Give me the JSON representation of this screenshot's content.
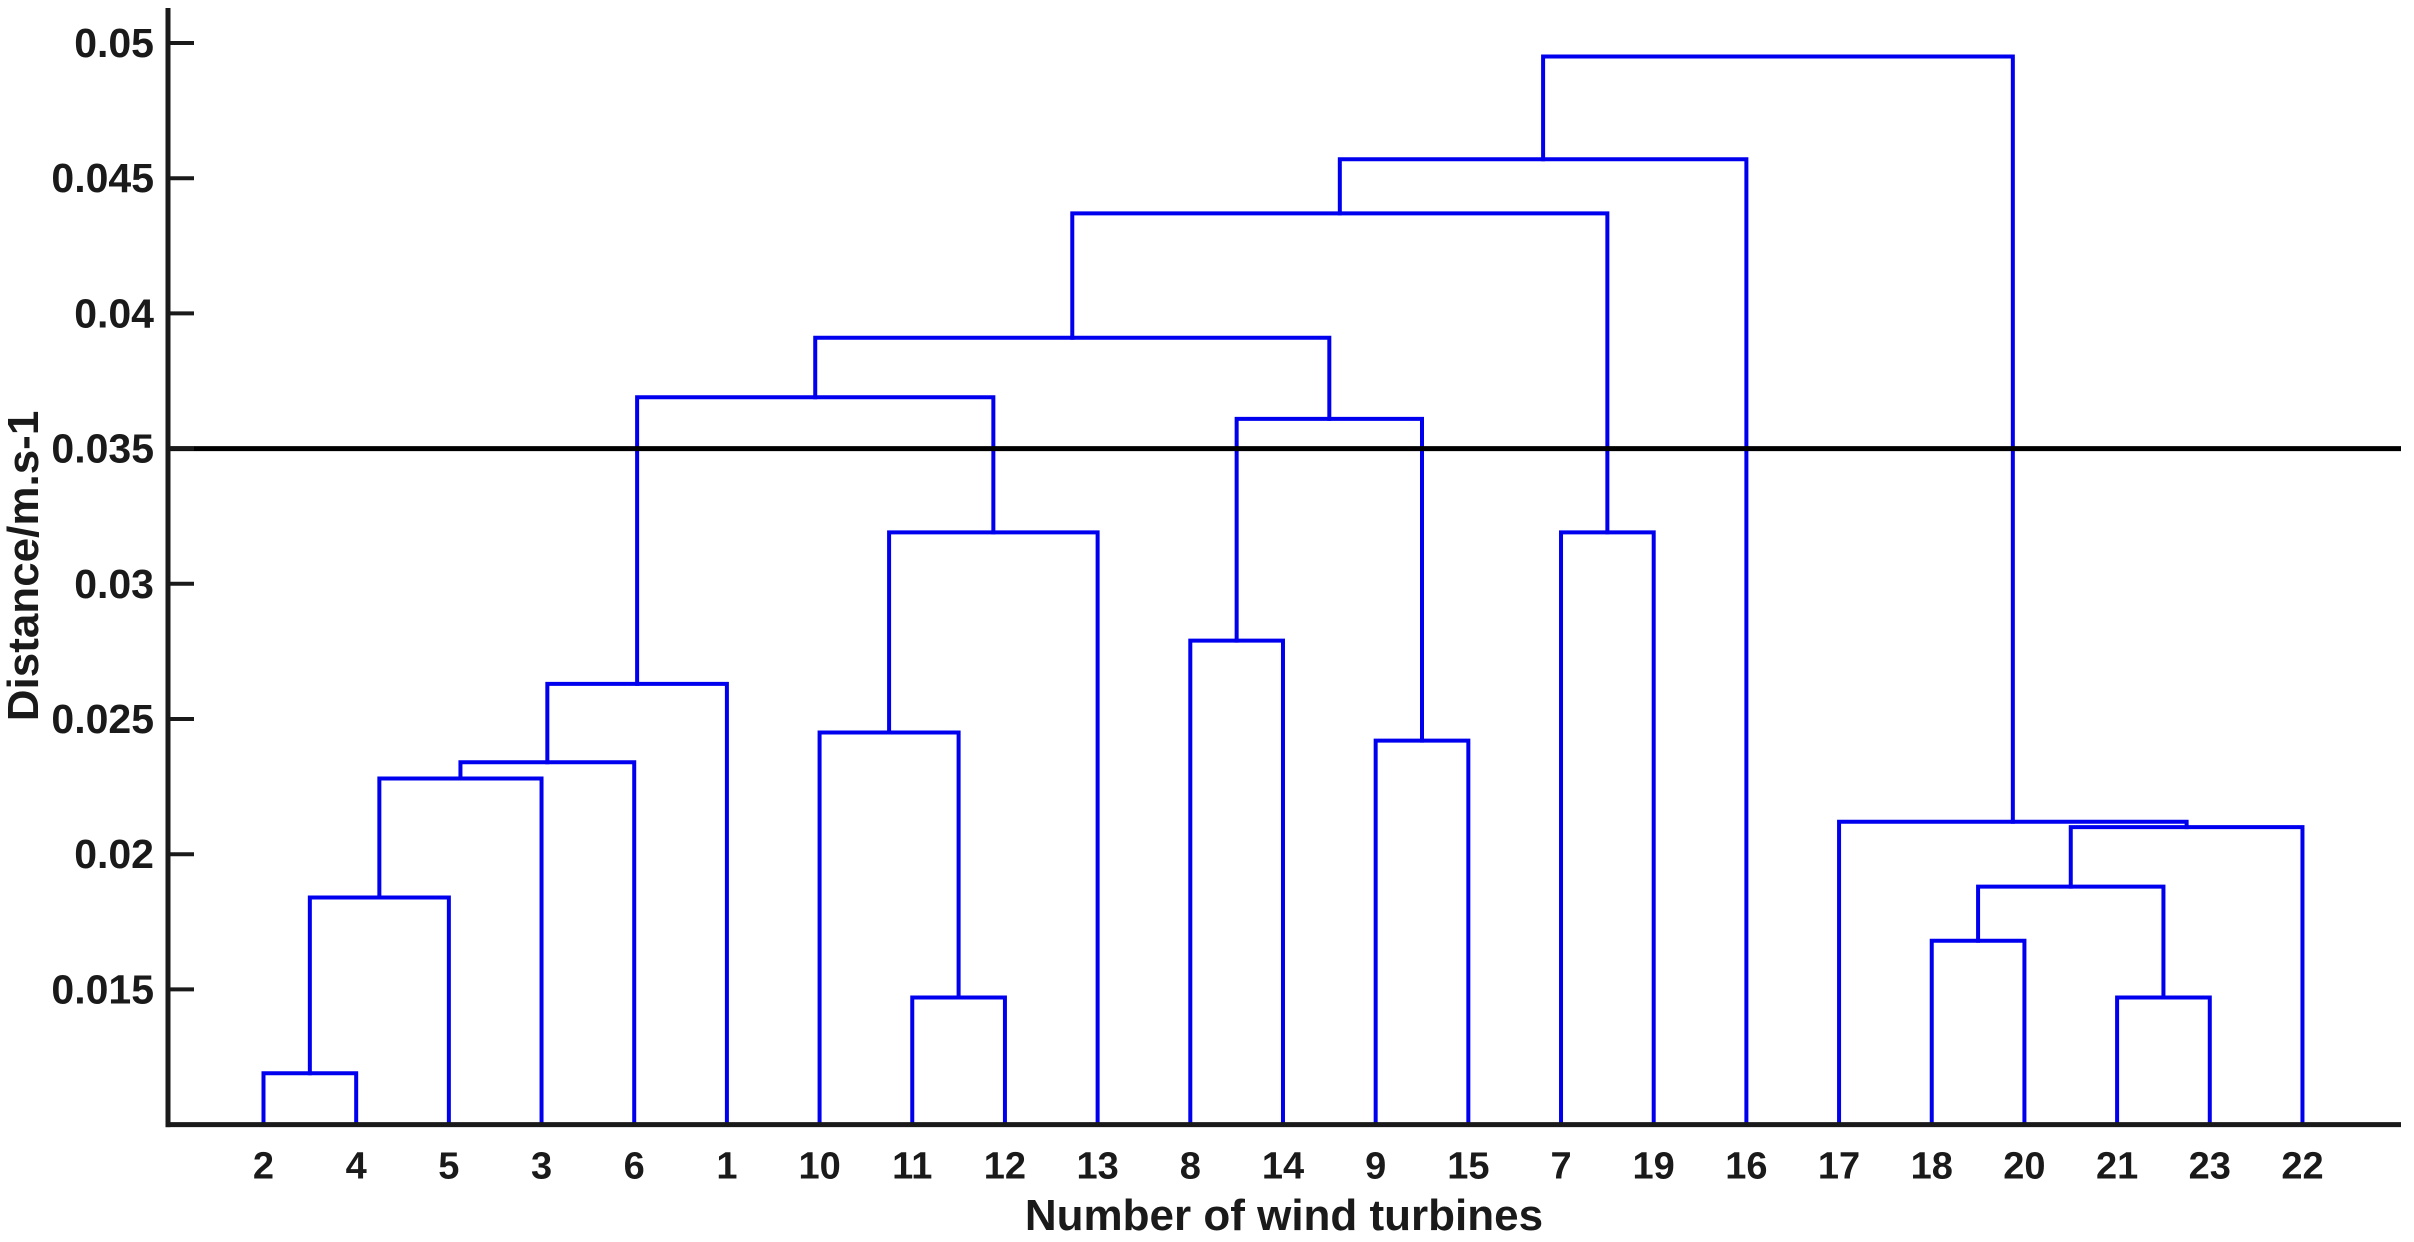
{
  "figure": {
    "xlabel": "Number of wind turbines",
    "ylabel": "Distance/m.s-1",
    "colors": {
      "dendrogram": "#0000ee",
      "axis": "#1a1a1a",
      "cutline": "#000000",
      "text": "#1a1a1a",
      "background": "#ffffff"
    }
  },
  "chart_data": {
    "type": "dendrogram",
    "title": "",
    "xlabel": "Number of wind turbines",
    "ylabel": "Distance/m.s-1",
    "ylim": [
      0.01,
      0.0513
    ],
    "grid": false,
    "ytick_labels": [
      "0.015",
      "0.02",
      "0.025",
      "0.03",
      "0.035",
      "0.04",
      "0.045",
      "0.05"
    ],
    "ytick_values": [
      0.015,
      0.02,
      0.025,
      0.03,
      0.035,
      0.04,
      0.045,
      0.05
    ],
    "cutline_value": 0.035,
    "leaf_order": [
      "2",
      "4",
      "5",
      "3",
      "6",
      "1",
      "10",
      "11",
      "12",
      "13",
      "8",
      "14",
      "9",
      "15",
      "7",
      "19",
      "16",
      "17",
      "18",
      "20",
      "21",
      "23",
      "22"
    ],
    "merges": [
      {
        "id": "A",
        "a": "2",
        "b": "4",
        "height": 0.0119
      },
      {
        "id": "B",
        "a": "A",
        "b": "5",
        "height": 0.0184
      },
      {
        "id": "C",
        "a": "B",
        "b": "3",
        "height": 0.0228
      },
      {
        "id": "D",
        "a": "C",
        "b": "6",
        "height": 0.0234
      },
      {
        "id": "E",
        "a": "D",
        "b": "1",
        "height": 0.0263
      },
      {
        "id": "M1",
        "a": "11",
        "b": "12",
        "height": 0.0147
      },
      {
        "id": "M2",
        "a": "10",
        "b": "M1",
        "height": 0.0245
      },
      {
        "id": "M3",
        "a": "M2",
        "b": "13",
        "height": 0.0319
      },
      {
        "id": "J1",
        "a": "E",
        "b": "M3",
        "height": 0.0369
      },
      {
        "id": "N1",
        "a": "8",
        "b": "14",
        "height": 0.0279
      },
      {
        "id": "N2",
        "a": "9",
        "b": "15",
        "height": 0.0242
      },
      {
        "id": "N3",
        "a": "N1",
        "b": "N2",
        "height": 0.0361
      },
      {
        "id": "J2",
        "a": "J1",
        "b": "N3",
        "height": 0.0391
      },
      {
        "id": "P1",
        "a": "7",
        "b": "19",
        "height": 0.0319
      },
      {
        "id": "G",
        "a": "J2",
        "b": "P1",
        "height": 0.0437
      },
      {
        "id": "H",
        "a": "G",
        "b": "16",
        "height": 0.0457
      },
      {
        "id": "R1",
        "a": "18",
        "b": "20",
        "height": 0.0168
      },
      {
        "id": "R2",
        "a": "21",
        "b": "23",
        "height": 0.0147
      },
      {
        "id": "R3",
        "a": "R1",
        "b": "R2",
        "height": 0.0188
      },
      {
        "id": "R5",
        "a": "R3",
        "b": "22",
        "height": 0.021
      },
      {
        "id": "R6",
        "a": "17",
        "b": "R5",
        "height": 0.0212
      },
      {
        "id": "ROOT",
        "a": "H",
        "b": "R6",
        "height": 0.0495
      }
    ]
  }
}
